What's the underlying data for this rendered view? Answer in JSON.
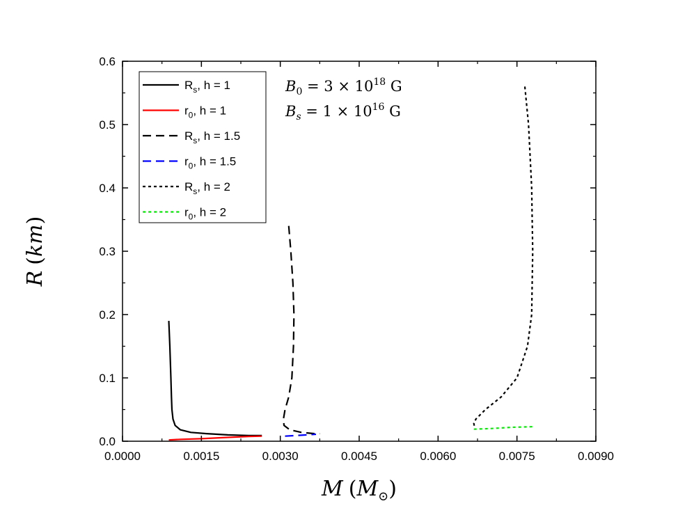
{
  "chart_data": {
    "type": "line",
    "xlabel": {
      "var": "M",
      "open": "(",
      "unit": "M",
      "unit_sub": "⊙",
      "close": ")"
    },
    "ylabel": {
      "var": "R",
      "open": "(",
      "unit": "km",
      "close": ")"
    },
    "xlim": [
      0,
      0.009
    ],
    "ylim": [
      0,
      0.6
    ],
    "xticks": [
      "0.0000",
      "0.0015",
      "0.0030",
      "0.0045",
      "0.0060",
      "0.0075",
      "0.0090"
    ],
    "yticks": [
      "0.0",
      "0.1",
      "0.2",
      "0.3",
      "0.4",
      "0.5",
      "0.6"
    ],
    "annotations": [
      {
        "var": "B",
        "sub": "0",
        "eq": " = 3 × 10",
        "sup": "18",
        "unit": " G"
      },
      {
        "var": "B",
        "sub": "s",
        "eq": " = 1 × 10",
        "sup": "16",
        "unit": " G"
      }
    ],
    "legend_position": "top-left",
    "series": [
      {
        "name": "R",
        "name_sub": "s",
        "name_rest": ", h = 1",
        "color": "#000000",
        "dash": "solid",
        "x": [
          0.00088,
          0.0009,
          0.00092,
          0.00093,
          0.00094,
          0.00096,
          0.001,
          0.0011,
          0.0013,
          0.0016,
          0.002,
          0.0024,
          0.00265
        ],
        "y": [
          0.19,
          0.15,
          0.1,
          0.07,
          0.05,
          0.035,
          0.025,
          0.018,
          0.014,
          0.012,
          0.01,
          0.009,
          0.009
        ]
      },
      {
        "name": "r",
        "name_sub": "0",
        "name_rest": ", h = 1",
        "color": "#ff0000",
        "dash": "solid",
        "x": [
          0.00088,
          0.0011,
          0.0015,
          0.002,
          0.0024,
          0.00265
        ],
        "y": [
          0.002,
          0.003,
          0.004,
          0.006,
          0.0075,
          0.008
        ]
      },
      {
        "name": "R",
        "name_sub": "s",
        "name_rest": ", h = 1.5",
        "color": "#000000",
        "dash": "dashed",
        "x": [
          0.00316,
          0.0032,
          0.00324,
          0.00326,
          0.00325,
          0.00322,
          0.00316,
          0.00309,
          0.00306,
          0.00307,
          0.00318,
          0.0034,
          0.00365,
          0.00375
        ],
        "y": [
          0.34,
          0.3,
          0.25,
          0.2,
          0.15,
          0.1,
          0.07,
          0.05,
          0.035,
          0.025,
          0.018,
          0.014,
          0.012,
          0.012
        ]
      },
      {
        "name": "r",
        "name_sub": "0",
        "name_rest": ", h = 1.5",
        "color": "#0000ff",
        "dash": "dashed",
        "x": [
          0.00309,
          0.0033,
          0.0035,
          0.00368
        ],
        "y": [
          0.008,
          0.009,
          0.01,
          0.011
        ]
      },
      {
        "name": "R",
        "name_sub": "s",
        "name_rest": ", h = 2",
        "color": "#000000",
        "dash": "dotted",
        "x": [
          0.00765,
          0.00772,
          0.00778,
          0.0078,
          0.00778,
          0.0077,
          0.0075,
          0.0072,
          0.0069,
          0.00672,
          0.00668,
          0.0067
        ],
        "y": [
          0.56,
          0.5,
          0.4,
          0.3,
          0.2,
          0.15,
          0.1,
          0.07,
          0.05,
          0.035,
          0.028,
          0.02
        ]
      },
      {
        "name": "r",
        "name_sub": "0",
        "name_rest": ", h = 2",
        "color": "#00ee00",
        "dash": "dotted",
        "x": [
          0.00668,
          0.007,
          0.0074,
          0.0078
        ],
        "y": [
          0.019,
          0.02,
          0.022,
          0.023
        ]
      }
    ]
  }
}
